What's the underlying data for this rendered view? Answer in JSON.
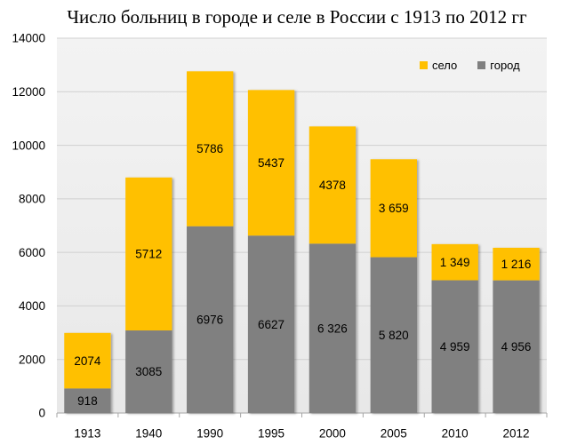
{
  "chart_data": {
    "type": "bar",
    "stacked": true,
    "title": "Число больниц в городе и селе в России с 1913 по 2012 гг",
    "categories": [
      "1913",
      "1940",
      "1990",
      "1995",
      "2000",
      "2005",
      "2010",
      "2012"
    ],
    "ylim": [
      0,
      14000
    ],
    "yticks": [
      "0",
      "2000",
      "4000",
      "6000",
      "8000",
      "10000",
      "12000",
      "14000"
    ],
    "grid": true,
    "legend": "top-right",
    "series": [
      {
        "name": "город",
        "color": "#808080",
        "values": [
          918,
          3085,
          6976,
          6627,
          6326,
          5820,
          4959,
          4956
        ],
        "labels": [
          "918",
          "3085",
          "6976",
          "6627",
          "6 326",
          "5 820",
          "4 959",
          "4 956"
        ]
      },
      {
        "name": "село",
        "color": "#FFC000",
        "values": [
          2074,
          5712,
          5786,
          5437,
          4378,
          3659,
          1349,
          1216
        ],
        "labels": [
          "2074",
          "5712",
          "5786",
          "5437",
          "4378",
          "3 659",
          "1 349",
          "1 216"
        ]
      }
    ]
  }
}
